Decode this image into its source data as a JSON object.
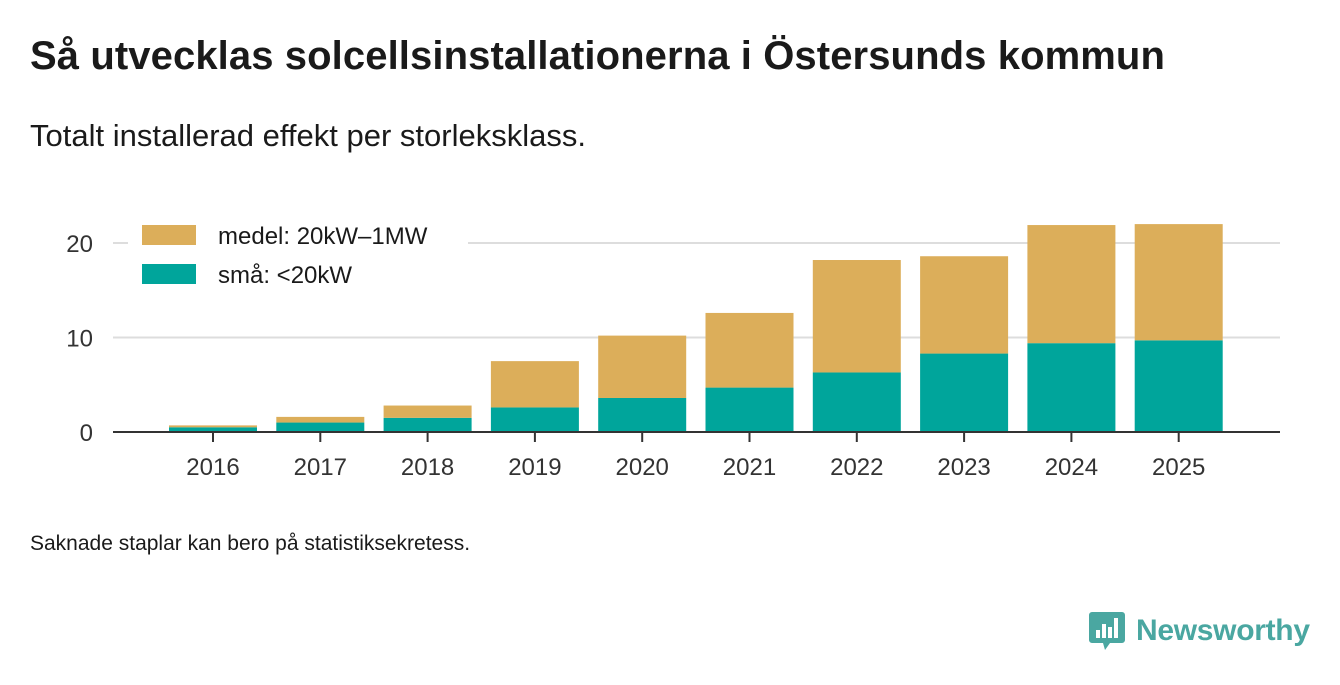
{
  "title": "Så utvecklas solcellsinstallationerna i Östersunds kommun",
  "subtitle": "Totalt installerad effekt per storleksklass.",
  "note": "Saknade staplar kan bero på statistiksekretess.",
  "brand": {
    "name": "Newsworthy",
    "icon": "bar-chart-speech-bubble-icon",
    "color": "#4aa7a1"
  },
  "chart_data": {
    "type": "bar",
    "stacked": true,
    "title": "Så utvecklas solcellsinstallationerna i Östersunds kommun",
    "subtitle": "Totalt installerad effekt per storleksklass.",
    "xlabel": "",
    "ylabel": "",
    "categories": [
      "2016",
      "2017",
      "2018",
      "2019",
      "2020",
      "2021",
      "2022",
      "2023",
      "2024",
      "2025"
    ],
    "series": [
      {
        "name": "små: <20kW",
        "color": "#00a59b",
        "values": [
          0.5,
          1.0,
          1.5,
          2.6,
          3.6,
          4.7,
          6.3,
          8.3,
          9.4,
          9.7
        ]
      },
      {
        "name": "medel: 20kW–1MW",
        "color": "#dcae5a",
        "values": [
          0.2,
          0.6,
          1.3,
          4.9,
          6.6,
          7.9,
          11.9,
          10.3,
          12.5,
          12.3
        ]
      }
    ],
    "ylim": [
      0,
      22
    ],
    "yticks": [
      0,
      10,
      20
    ],
    "grid": true,
    "legend": {
      "position": "top-left",
      "order": [
        "medel: 20kW–1MW",
        "små: <20kW"
      ]
    }
  }
}
